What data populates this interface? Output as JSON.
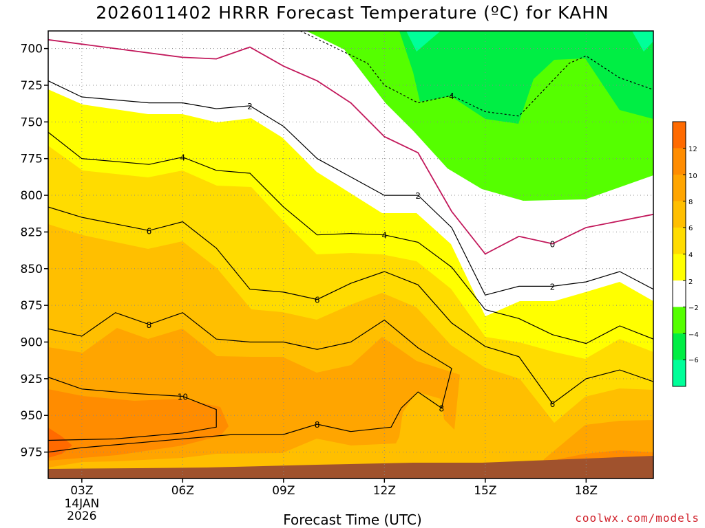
{
  "title": "2026011402 HRRR Forecast Temperature (ºC) for KAHN",
  "credit": "coolwx.com/models",
  "chart_data": {
    "type": "heatmap",
    "title": "2026011402 HRRR Forecast Temperature (ºC) for KAHN",
    "xlabel": "Forecast Time (UTC)",
    "ylabel": "",
    "x_ticks": [
      "03Z",
      "06Z",
      "09Z",
      "12Z",
      "15Z",
      "18Z"
    ],
    "x_date_label": [
      "14JAN",
      "2026"
    ],
    "y_ticks": [
      700,
      725,
      750,
      775,
      800,
      825,
      850,
      875,
      900,
      925,
      950,
      975
    ],
    "xlim_hours": [
      2,
      20
    ],
    "ylim_hPa": [
      688,
      993
    ],
    "y_axis": "pressure (hPa), inverted",
    "colorbar_labels": [
      12,
      10,
      8,
      6,
      4,
      2,
      -2,
      -4,
      -6
    ],
    "colorbar_levels": [
      {
        "range": [
          12,
          14
        ],
        "color": "#ff6a00"
      },
      {
        "range": [
          10,
          12
        ],
        "color": "#ff8c00"
      },
      {
        "range": [
          8,
          10
        ],
        "color": "#ffa500"
      },
      {
        "range": [
          6,
          8
        ],
        "color": "#ffbf00"
      },
      {
        "range": [
          4,
          6
        ],
        "color": "#ffdc00"
      },
      {
        "range": [
          2,
          4
        ],
        "color": "#ffff00"
      },
      {
        "range": [
          -2,
          2
        ],
        "color": "#ffffff"
      },
      {
        "range": [
          -4,
          -2
        ],
        "color": "#55ff00"
      },
      {
        "range": [
          -6,
          -4
        ],
        "color": "#00ee44"
      },
      {
        "range": [
          -8,
          -6
        ],
        "color": "#00ff99"
      }
    ],
    "ground_color": "#a0522d",
    "isotherms": [
      {
        "value": 0,
        "color": "#c2185b",
        "points": [
          [
            2.0,
            694
          ],
          [
            3.0,
            697
          ],
          [
            4.0,
            700
          ],
          [
            6.0,
            706
          ],
          [
            7.0,
            707
          ],
          [
            8.0,
            699
          ],
          [
            9.0,
            712
          ],
          [
            10.0,
            722
          ],
          [
            11.0,
            737
          ],
          [
            12.0,
            760
          ],
          [
            13.0,
            771
          ],
          [
            14.0,
            811
          ],
          [
            15.0,
            840
          ],
          [
            16.0,
            828
          ],
          [
            17.0,
            833
          ],
          [
            18.0,
            822
          ],
          [
            20.0,
            813
          ]
        ]
      },
      {
        "value": 2,
        "color": "#000000",
        "points": [
          [
            2.0,
            722
          ],
          [
            3.0,
            733
          ],
          [
            5.0,
            737
          ],
          [
            6.0,
            737
          ],
          [
            7.0,
            741
          ],
          [
            8.0,
            739
          ],
          [
            9.0,
            753
          ],
          [
            10.0,
            775
          ],
          [
            12.0,
            800
          ],
          [
            13.0,
            800
          ],
          [
            14.0,
            822
          ],
          [
            15.0,
            868
          ],
          [
            16.0,
            862
          ],
          [
            17.0,
            862
          ],
          [
            18.0,
            859
          ],
          [
            19.0,
            852
          ],
          [
            20.0,
            864
          ]
        ],
        "labels": [
          [
            8.0,
            739
          ],
          [
            13.0,
            800
          ],
          [
            17.0,
            862
          ]
        ]
      },
      {
        "value": 4,
        "color": "#000000",
        "points": [
          [
            2.0,
            757
          ],
          [
            3.0,
            775
          ],
          [
            5.0,
            779
          ],
          [
            6.0,
            774
          ],
          [
            7.0,
            783
          ],
          [
            8.0,
            785
          ],
          [
            9.0,
            808
          ],
          [
            10.0,
            827
          ],
          [
            11.0,
            826
          ],
          [
            12.0,
            827
          ],
          [
            13.0,
            832
          ],
          [
            14.0,
            849
          ],
          [
            15.0,
            878
          ],
          [
            16.0,
            884
          ],
          [
            17.0,
            895
          ],
          [
            18.0,
            901
          ],
          [
            19.0,
            889
          ],
          [
            20.0,
            898
          ]
        ],
        "labels": [
          [
            6.0,
            774
          ],
          [
            12.0,
            827
          ]
        ]
      },
      {
        "value": 6,
        "color": "#000000",
        "points": [
          [
            2.0,
            808
          ],
          [
            3.0,
            815
          ],
          [
            5.0,
            824
          ],
          [
            6.0,
            818
          ],
          [
            7.0,
            836
          ],
          [
            8.0,
            864
          ],
          [
            9.0,
            866
          ],
          [
            10.0,
            871
          ],
          [
            11.0,
            860
          ],
          [
            12.0,
            852
          ],
          [
            13.0,
            861
          ],
          [
            14.0,
            887
          ],
          [
            15.0,
            903
          ],
          [
            16.0,
            910
          ],
          [
            17.0,
            942
          ],
          [
            18.0,
            925
          ],
          [
            19.0,
            919
          ],
          [
            20.0,
            927
          ]
        ],
        "labels": [
          [
            5.0,
            824
          ],
          [
            10.0,
            871
          ],
          [
            17.0,
            942
          ]
        ]
      },
      {
        "value": 8,
        "color": "#000000",
        "points": [
          [
            2.0,
            891
          ],
          [
            3.0,
            896
          ],
          [
            4.0,
            880
          ],
          [
            5.0,
            888
          ],
          [
            6.0,
            880
          ],
          [
            7.0,
            898
          ],
          [
            8.0,
            900
          ],
          [
            9.0,
            900
          ],
          [
            10.0,
            905
          ],
          [
            11.0,
            900
          ],
          [
            12.0,
            885
          ],
          [
            13.0,
            904
          ],
          [
            14.0,
            918
          ],
          [
            13.7,
            945
          ],
          [
            13.0,
            934
          ],
          [
            12.5,
            945
          ],
          [
            12.2,
            958
          ],
          [
            11.0,
            961
          ],
          [
            10.0,
            956
          ],
          [
            9.0,
            963
          ],
          [
            7.5,
            963
          ],
          [
            6.0,
            966
          ],
          [
            3.0,
            972
          ],
          [
            2.0,
            975
          ]
        ],
        "labels": [
          [
            5.0,
            888
          ],
          [
            10.0,
            956
          ],
          [
            13.7,
            945
          ]
        ]
      },
      {
        "value": 10,
        "color": "#000000",
        "points": [
          [
            2.0,
            924
          ],
          [
            3.0,
            932
          ],
          [
            4.5,
            935
          ],
          [
            6.0,
            937
          ],
          [
            7.0,
            946
          ],
          [
            7.0,
            958
          ],
          [
            6.0,
            962
          ],
          [
            4.0,
            966
          ],
          [
            2.0,
            967
          ]
        ],
        "labels": [
          [
            6.0,
            937
          ]
        ]
      },
      {
        "value": -4,
        "color": "#000000",
        "dashed": true,
        "points": [
          [
            9.5,
            688
          ],
          [
            11.5,
            710
          ],
          [
            12.0,
            725
          ],
          [
            13.0,
            737
          ],
          [
            14.0,
            732
          ],
          [
            15.0,
            743
          ],
          [
            16.0,
            746
          ],
          [
            17.0,
            722
          ],
          [
            17.5,
            710
          ],
          [
            18.0,
            705
          ],
          [
            19.0,
            720
          ],
          [
            20.0,
            728
          ]
        ],
        "labels": [
          [
            14.0,
            732
          ]
        ]
      }
    ]
  }
}
